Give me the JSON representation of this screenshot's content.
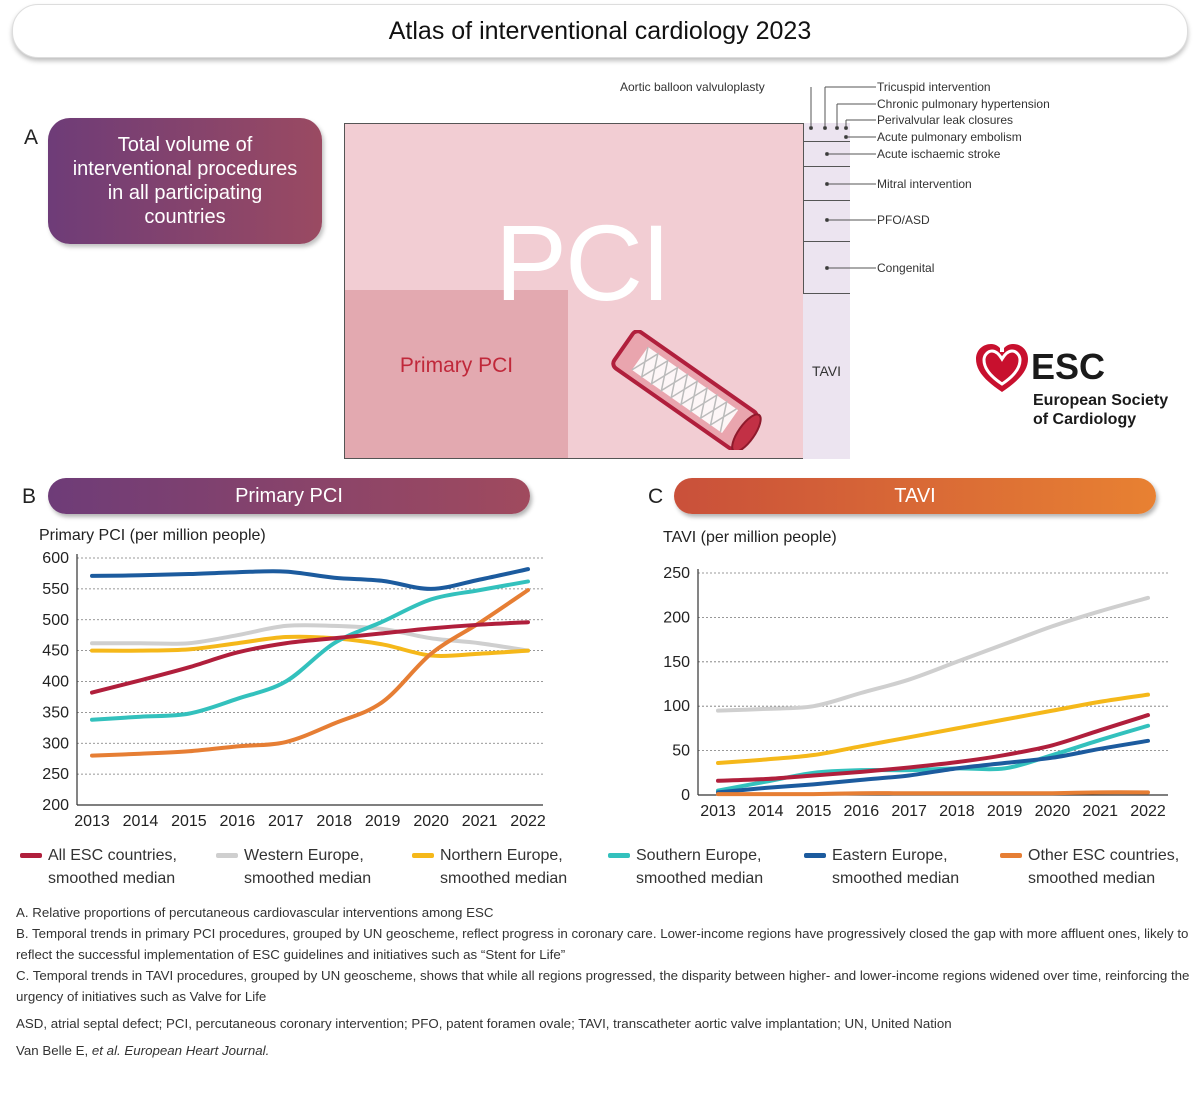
{
  "header": {
    "title": "Atlas of interventional cardiology 2023"
  },
  "panel_a": {
    "letter": "A",
    "box_text": "Total volume of interventional procedures in all participating countries",
    "main_label": "PCI",
    "sub_label": "Primary PCI",
    "tavi_label": "TAVI",
    "legend_labels": [
      "Aortic balloon valvuloplasty",
      "Tricuspid intervention",
      "Chronic pulmonary hypertension",
      "Perivalvular leak closures",
      "Acute pulmonary embolism",
      "Acute ischaemic stroke",
      "Mitral intervention",
      "PFO/ASD",
      "Congenital"
    ]
  },
  "logo": {
    "abbr": "ESC",
    "line1": "European Society",
    "line2": "of Cardiology"
  },
  "panel_b": {
    "letter": "B",
    "title": "Primary PCI"
  },
  "panel_c": {
    "letter": "C",
    "title": "TAVI"
  },
  "colors": {
    "all_esc": "#b01f3c",
    "western": "#cfcfcf",
    "northern": "#f5b81a",
    "southern": "#33c1bd",
    "eastern": "#1c5b9e",
    "other": "#e67e34",
    "treemap_bg": "#f2cdd3",
    "primary_block": "#e3a9b0"
  },
  "chart_data": [
    {
      "type": "line",
      "title": "Primary PCI",
      "ylabel": "Primary PCI (per million people)",
      "xlabel": "",
      "x": [
        "2013",
        "2014",
        "2015",
        "2016",
        "2017",
        "2018",
        "2019",
        "2020",
        "2021",
        "2022"
      ],
      "ylim": [
        200,
        600
      ],
      "yticks": [
        200,
        250,
        300,
        350,
        400,
        450,
        500,
        550,
        600
      ],
      "grid": true,
      "series": [
        {
          "name": "Western Europe, smoothed median",
          "color": "#cfcfcf",
          "values": [
            462,
            462,
            462,
            475,
            490,
            490,
            485,
            470,
            462,
            450
          ]
        },
        {
          "name": "Northern Europe, smoothed median",
          "color": "#f5b81a",
          "values": [
            450,
            450,
            452,
            462,
            472,
            470,
            460,
            442,
            445,
            450
          ]
        },
        {
          "name": "Southern Europe, smoothed median",
          "color": "#33c1bd",
          "values": [
            338,
            343,
            348,
            372,
            400,
            462,
            497,
            533,
            548,
            562
          ]
        },
        {
          "name": "Other ESC countries, smoothed median",
          "color": "#e67e34",
          "values": [
            280,
            283,
            287,
            295,
            302,
            332,
            367,
            445,
            495,
            548
          ]
        },
        {
          "name": "All ESC countries, smoothed median",
          "color": "#b01f3c",
          "values": [
            382,
            402,
            423,
            447,
            462,
            470,
            478,
            486,
            492,
            496
          ]
        },
        {
          "name": "Eastern Europe, smoothed median",
          "color": "#1c5b9e",
          "values": [
            571,
            572,
            574,
            577,
            578,
            568,
            563,
            550,
            565,
            582
          ]
        }
      ]
    },
    {
      "type": "line",
      "title": "TAVI",
      "ylabel": "TAVI (per million people)",
      "xlabel": "",
      "x": [
        "2013",
        "2014",
        "2015",
        "2016",
        "2017",
        "2018",
        "2019",
        "2020",
        "2021",
        "2022"
      ],
      "ylim": [
        0,
        250
      ],
      "yticks": [
        0,
        50,
        100,
        150,
        200,
        250
      ],
      "grid": true,
      "series": [
        {
          "name": "Western Europe, smoothed median",
          "color": "#cfcfcf",
          "values": [
            95,
            97,
            100,
            115,
            130,
            150,
            170,
            190,
            207,
            222
          ]
        },
        {
          "name": "Northern Europe, smoothed median",
          "color": "#f5b81a",
          "values": [
            36,
            40,
            45,
            55,
            65,
            75,
            85,
            95,
            105,
            113
          ]
        },
        {
          "name": "Southern Europe, smoothed median",
          "color": "#33c1bd",
          "values": [
            5,
            15,
            25,
            28,
            28,
            30,
            30,
            45,
            62,
            78
          ]
        },
        {
          "name": "Eastern Europe, smoothed median",
          "color": "#1c5b9e",
          "values": [
            3,
            8,
            12,
            17,
            22,
            30,
            36,
            42,
            52,
            61
          ]
        },
        {
          "name": "All ESC countries, smoothed median",
          "color": "#b01f3c",
          "values": [
            16,
            18,
            22,
            26,
            31,
            37,
            45,
            56,
            73,
            90
          ]
        },
        {
          "name": "Other ESC countries, smoothed median",
          "color": "#e67e34",
          "values": [
            1,
            1,
            1,
            2,
            2,
            2,
            2,
            2,
            3,
            3
          ]
        }
      ]
    }
  ],
  "legend": [
    {
      "line1": "All ESC countries,",
      "line2": "smoothed median",
      "color": "#b01f3c"
    },
    {
      "line1": "Western Europe,",
      "line2": "smoothed median",
      "color": "#cfcfcf"
    },
    {
      "line1": "Northern Europe,",
      "line2": "smoothed median",
      "color": "#f5b81a"
    },
    {
      "line1": "Southern Europe,",
      "line2": "smoothed median",
      "color": "#33c1bd"
    },
    {
      "line1": "Eastern Europe,",
      "line2": "smoothed median",
      "color": "#1c5b9e"
    },
    {
      "line1": "Other ESC countries,",
      "line2": "smoothed median",
      "color": "#e67e34"
    }
  ],
  "notes": {
    "a": "A. Relative proportions of percutaneous cardiovascular interventions among ESC",
    "b": "B. Temporal trends in primary PCI procedures, grouped by UN geoscheme, reflect progress in coronary care. Lower-income regions have progressively closed the gap with more affluent ones, likely to reflect the successful implementation of ESC guidelines and initiatives such as “Stent for Life”",
    "c": "C. Temporal trends in TAVI procedures, grouped by UN geoscheme, shows that while all regions progressed, the disparity between higher- and lower-income regions widened over time, reinforcing the urgency of initiatives such as Valve for Life",
    "abbrev": "ASD, atrial septal defect; PCI, percutaneous coronary intervention; PFO, patent foramen ovale; TAVI, transcatheter aortic valve implantation; UN, United Nation",
    "citation_authors": "Van Belle E, ",
    "citation_etal": "et al.",
    "citation_journal": " European Heart Journal."
  }
}
